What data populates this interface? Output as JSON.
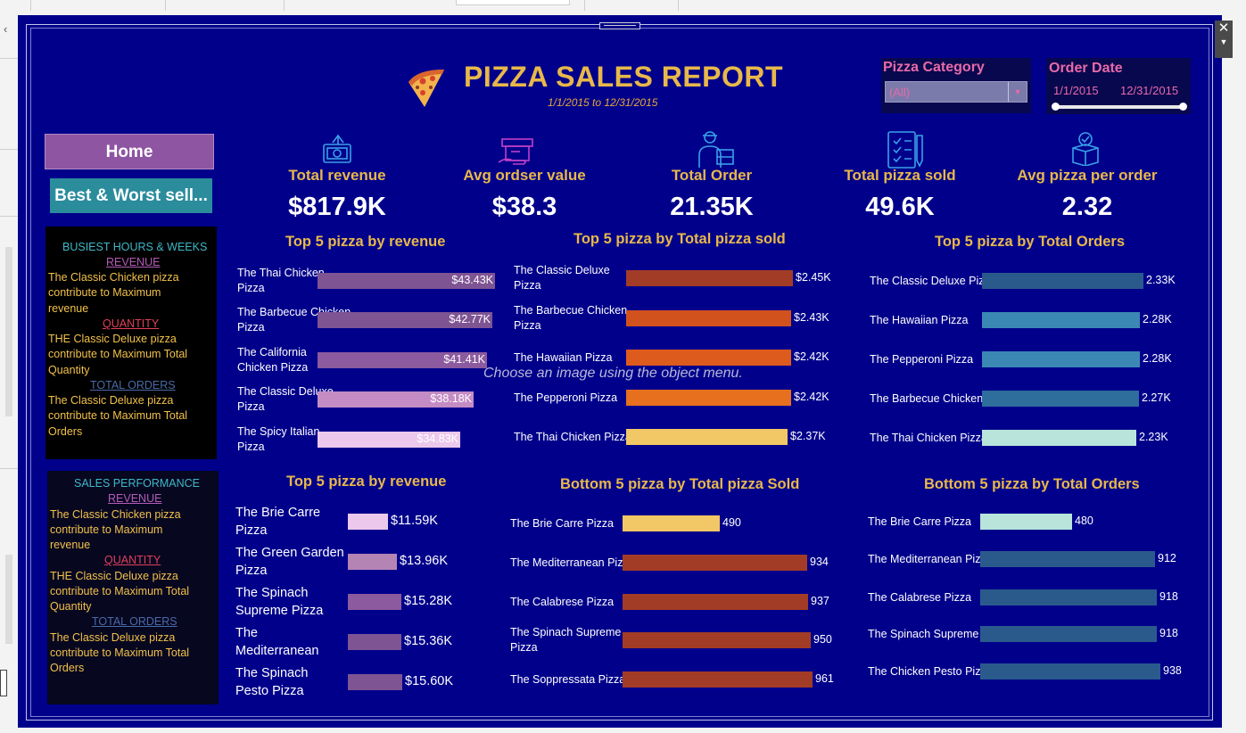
{
  "header": {
    "title": "PIZZA SALES REPORT",
    "subtitle": "1/1/2015 to 12/31/2015",
    "logo_icon": "pizza-slice-icon"
  },
  "filters": {
    "category_label": "Pizza Category",
    "category_value": "(All)",
    "date_label": "Order Date",
    "date_start": "1/1/2015",
    "date_end": "12/31/2015"
  },
  "nav": {
    "home": "Home",
    "best_worst": "Best & Worst sell..."
  },
  "kpis": [
    {
      "label": "Total revenue",
      "value": "$817.9K",
      "icon": "money-icon"
    },
    {
      "label": "Avg ordser value",
      "value": "$38.3",
      "icon": "payment-box-icon"
    },
    {
      "label": "Total Order",
      "value": "21.35K",
      "icon": "delivery-person-icon"
    },
    {
      "label": "Total pizza sold",
      "value": "49.6K",
      "icon": "checklist-icon"
    },
    {
      "label": "Avg pizza per order",
      "value": "2.32",
      "icon": "box-badge-icon"
    }
  ],
  "insights": {
    "busiest": {
      "title": "BUSIEST HOURS & WEEKS",
      "revenue_head": "REVENUE",
      "revenue_text": [
        "The Classic Chicken pizza",
        "contribute to Maximum",
        "revenue"
      ],
      "quantity_head": "QUANTITY",
      "quantity_text": [
        "THE Classic Deluxe pizza",
        "contribute to Maximum Total",
        "Quantity"
      ],
      "orders_head": "TOTAL ORDERS",
      "orders_text": [
        "The Classic Deluxe pizza",
        "contribute to Maximum Total",
        "Orders"
      ]
    },
    "sales": {
      "title": "SALES PERFORMANCE",
      "revenue_head": "REVENUE",
      "revenue_text": [
        "The Classic Chicken pizza",
        "contribute to Maximum",
        "revenue"
      ],
      "quantity_head": "QUANTITY",
      "quantity_text": [
        "THE Classic Deluxe pizza",
        "contribute to Maximum Total",
        "Quantity"
      ],
      "orders_head": "TOTAL ORDERS",
      "orders_text": [
        "The Classic Deluxe pizza",
        "contribute to Maximum Total",
        "Orders"
      ]
    }
  },
  "overlay_text": "Choose an image using the object menu.",
  "chart_data": [
    {
      "type": "bar",
      "title": "Top 5 pizza by revenue",
      "categories": [
        "The Thai Chicken Pizza",
        "The Barbecue Chicken Pizza",
        "The California Chicken Pizza",
        "The Classic Deluxe Pizza",
        "The Spicy Italian Pizza"
      ],
      "values": [
        43430,
        42770,
        41410,
        38180,
        34830
      ],
      "labels": [
        "$43.43K",
        "$42.77K",
        "$41.41K",
        "$38.18K",
        "$34.83K"
      ],
      "colors": [
        "#7e5493",
        "#7e5493",
        "#8c5a9e",
        "#c48cc4",
        "#ecc8ec"
      ]
    },
    {
      "type": "bar",
      "title": "Top 5 pizza by Total pizza sold",
      "categories": [
        "The Classic Deluxe Pizza",
        "The Barbecue Chicken Pizza",
        "The Hawaiian Pizza",
        "The Pepperoni Pizza",
        "The Thai Chicken Pizza"
      ],
      "values": [
        2450,
        2430,
        2420,
        2420,
        2370
      ],
      "labels": [
        "$2.45K",
        "$2.43K",
        "$2.42K",
        "$2.42K",
        "$2.37K"
      ],
      "colors": [
        "#a33c26",
        "#d2521e",
        "#de5b1e",
        "#e6701e",
        "#f2c765"
      ]
    },
    {
      "type": "bar",
      "title": "Top 5 pizza by Total Orders",
      "categories": [
        "The Classic Deluxe Pizza",
        "The Hawaiian Pizza",
        "The Pepperoni Pizza",
        "The Barbecue Chicken Pizza",
        "The Thai Chicken Pizza"
      ],
      "values": [
        2330,
        2280,
        2280,
        2270,
        2230
      ],
      "labels": [
        "2.33K",
        "2.28K",
        "2.28K",
        "2.27K",
        "2.23K"
      ],
      "colors": [
        "#2a5a8c",
        "#3b88b4",
        "#3b88b4",
        "#2e6e9c",
        "#b8e4dc"
      ]
    },
    {
      "type": "bar",
      "title": "Top 5 pizza by revenue",
      "categories": [
        "The Brie Carre Pizza",
        "The Green Garden Pizza",
        "The Spinach Supreme Pizza",
        "The Mediterranean Pi..",
        "The Spinach Pesto Pizza"
      ],
      "values": [
        11590,
        13960,
        15280,
        15360,
        15600
      ],
      "labels": [
        "$11.59K",
        "$13.96K",
        "$15.28K",
        "$15.36K",
        "$15.60K"
      ],
      "colors": [
        "#ecc8ec",
        "#b484b4",
        "#8c5a9e",
        "#7e5493",
        "#7e5493"
      ]
    },
    {
      "type": "bar",
      "title": "Bottom 5 pizza by Total pizza Sold",
      "categories": [
        "The Brie Carre Pizza",
        "The Mediterranean Pizza",
        "The Calabrese Pizza",
        "The Spinach Supreme Pizza",
        "The Soppressata Pizza"
      ],
      "values": [
        490,
        934,
        937,
        950,
        961
      ],
      "labels": [
        "490",
        "934",
        "937",
        "950",
        "961"
      ],
      "colors": [
        "#f2c765",
        "#a33c26",
        "#a33c26",
        "#a33c26",
        "#a33c26"
      ]
    },
    {
      "type": "bar",
      "title": "Bottom 5 pizza by Total Orders",
      "categories": [
        "The Brie Carre Pizza",
        "The Mediterranean Pizza",
        "The Calabrese Pizza",
        "The Spinach Supreme Pizza",
        "The Chicken Pesto Pizza"
      ],
      "values": [
        480,
        912,
        918,
        918,
        938
      ],
      "labels": [
        "480",
        "912",
        "918",
        "918",
        "938"
      ],
      "colors": [
        "#b8e4dc",
        "#2a5a8c",
        "#2a5a8c",
        "#2a5a8c",
        "#2a5a8c"
      ]
    }
  ]
}
